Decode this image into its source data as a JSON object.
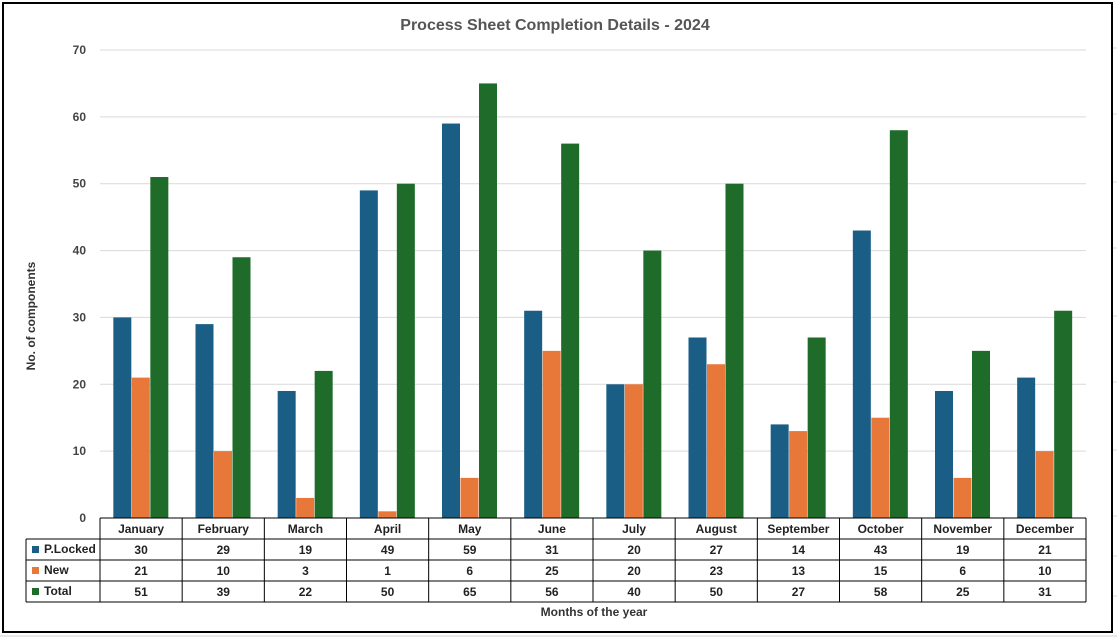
{
  "chart_data": {
    "type": "bar",
    "title": "Process Sheet Completion Details - 2024",
    "xlabel": "Months of the year",
    "ylabel": "No. of components",
    "ylim": [
      0,
      70
    ],
    "yticks": [
      0,
      10,
      20,
      30,
      40,
      50,
      60,
      70
    ],
    "grid": true,
    "legend": "data-table",
    "categories": [
      "January",
      "February",
      "March",
      "April",
      "May",
      "June",
      "July",
      "August",
      "September",
      "October",
      "November",
      "December"
    ],
    "series": [
      {
        "name": "P.Locked",
        "color": "#1a5e85",
        "values": [
          30,
          29,
          19,
          49,
          59,
          31,
          20,
          27,
          14,
          43,
          19,
          21
        ]
      },
      {
        "name": "New",
        "color": "#e8773a",
        "values": [
          21,
          10,
          3,
          1,
          6,
          25,
          20,
          23,
          13,
          15,
          6,
          10
        ]
      },
      {
        "name": "Total",
        "color": "#1e6b2a",
        "values": [
          51,
          39,
          22,
          50,
          65,
          56,
          40,
          50,
          27,
          58,
          25,
          31
        ]
      }
    ]
  }
}
